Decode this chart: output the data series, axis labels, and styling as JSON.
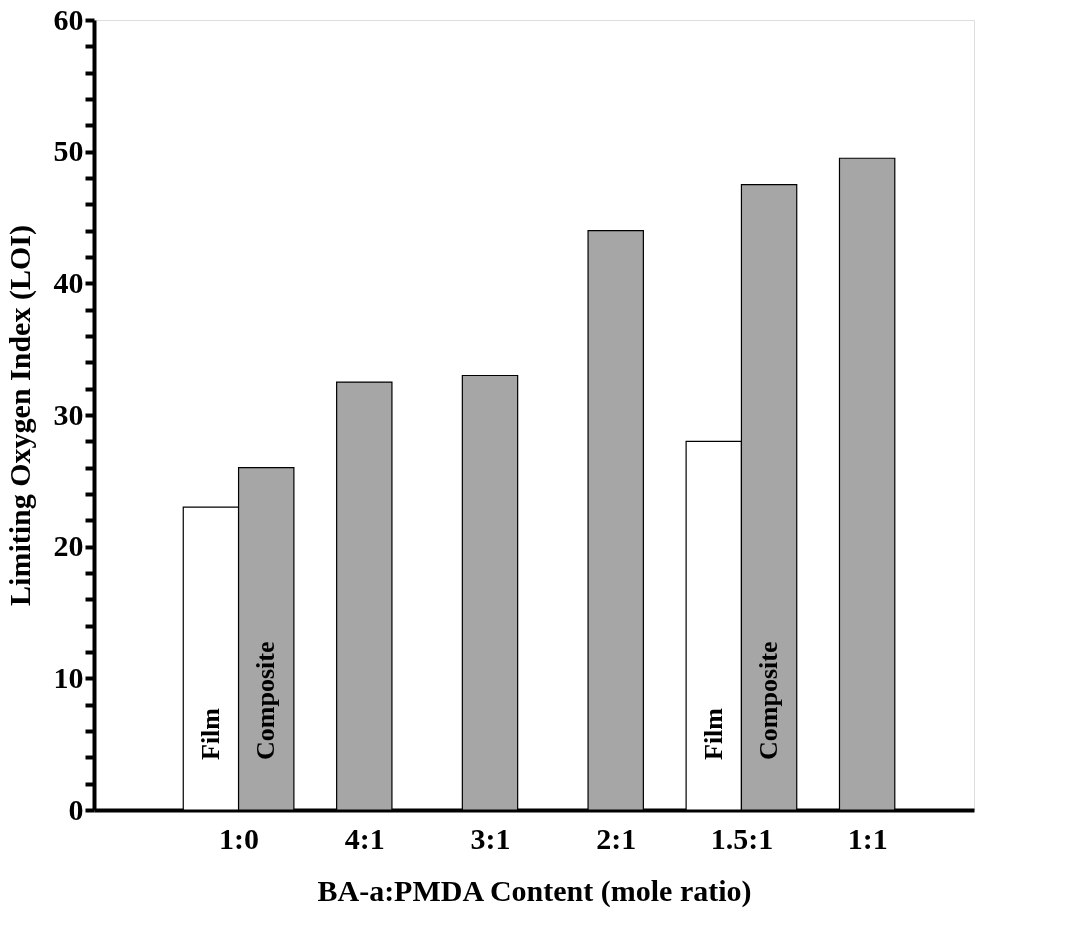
{
  "chart_data": {
    "type": "bar",
    "xlabel": "BA-a:PMDA Content (mole ratio)",
    "ylabel": "Limiting Oxygen Index (LOI)",
    "categories": [
      "1:0",
      "4:1",
      "3:1",
      "2:1",
      "1.5:1",
      "1:1"
    ],
    "series": [
      {
        "name": "Film",
        "color": "#ffffff",
        "values": [
          23,
          null,
          null,
          null,
          28,
          null
        ]
      },
      {
        "name": "Composite",
        "color": "#a6a6a6",
        "values": [
          26,
          32.5,
          33,
          44,
          47.5,
          49.5
        ]
      }
    ],
    "ylim": [
      0,
      60
    ],
    "yticks": [
      0,
      {
        "value": 2,
        "label": null
      },
      {
        "value": 4,
        "label": null
      },
      {
        "value": 6,
        "label": null
      },
      {
        "value": 8,
        "label": null
      },
      10,
      {
        "value": 12,
        "label": null
      },
      {
        "value": 14,
        "label": null
      },
      {
        "value": 16,
        "label": null
      },
      {
        "value": 18,
        "label": null
      },
      20,
      {
        "value": 22,
        "label": null
      },
      {
        "value": 24,
        "label": null
      },
      {
        "value": 26,
        "label": null
      },
      {
        "value": 28,
        "label": null
      },
      30,
      {
        "value": 32,
        "label": null
      },
      {
        "value": 34,
        "label": null
      },
      {
        "value": 36,
        "label": null
      },
      {
        "value": 38,
        "label": null
      },
      40,
      {
        "value": 42,
        "label": null
      },
      {
        "value": 44,
        "label": null
      },
      {
        "value": 46,
        "label": null
      },
      {
        "value": 48,
        "label": null
      },
      50,
      {
        "value": 52,
        "label": null
      },
      {
        "value": 54,
        "label": null
      },
      {
        "value": 56,
        "label": null
      },
      {
        "value": 58,
        "label": null
      },
      60
    ],
    "grid": false
  }
}
